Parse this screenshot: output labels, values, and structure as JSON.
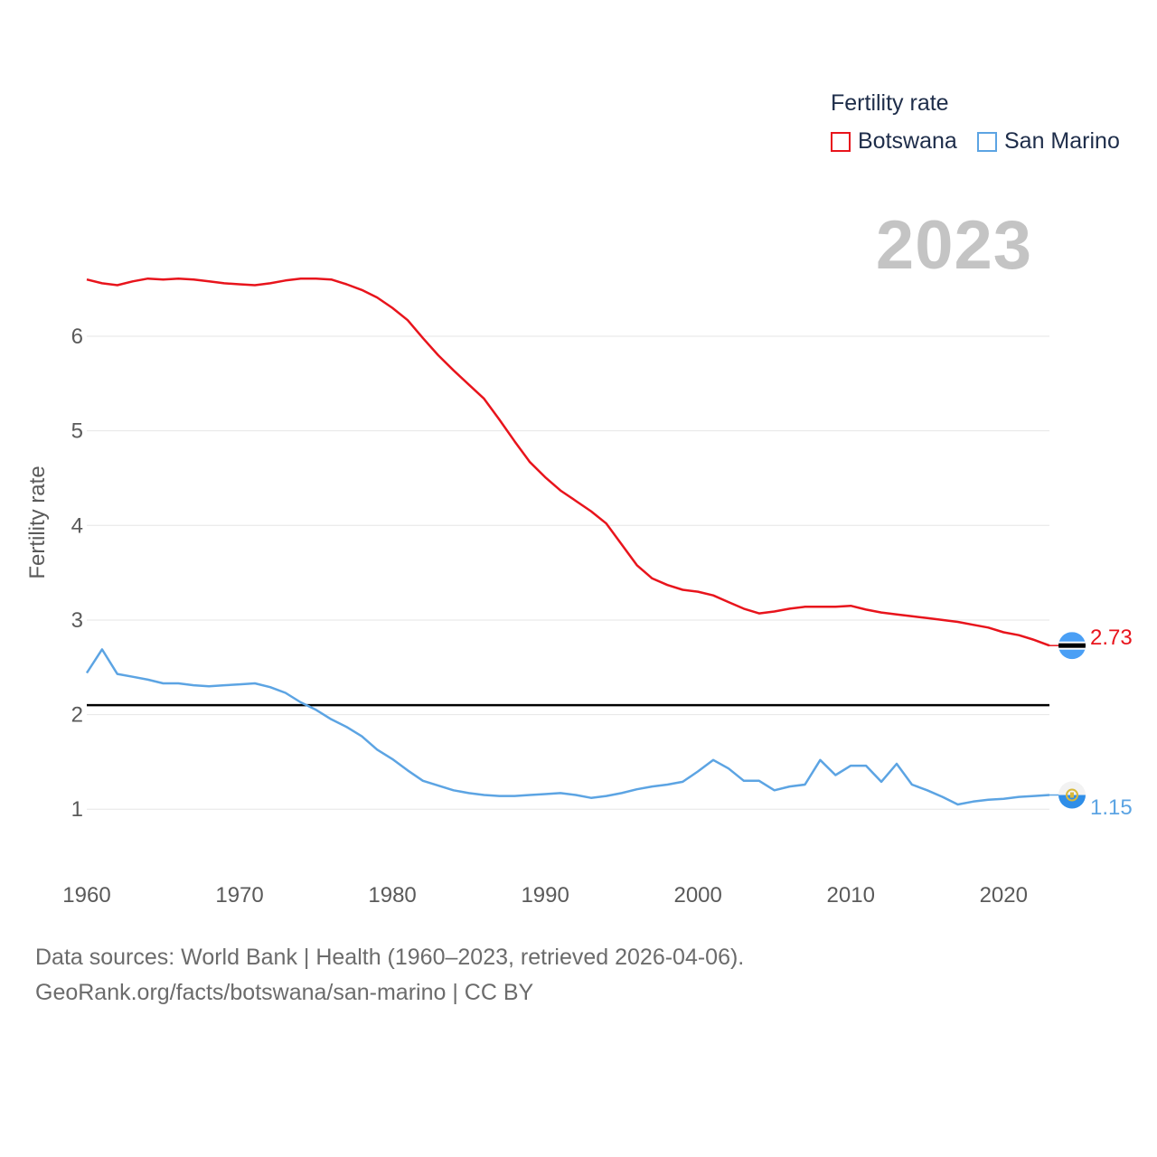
{
  "chart_data": {
    "type": "line",
    "title": "Fertility rate",
    "ylabel": "Fertility rate",
    "xlabel": "",
    "current_year": "2023",
    "xlim": [
      1960,
      2023
    ],
    "ylim": [
      0.4,
      7.3
    ],
    "x_ticks": [
      1960,
      1970,
      1980,
      1990,
      2000,
      2010,
      2020
    ],
    "y_ticks": [
      1,
      2,
      3,
      4,
      5,
      6
    ],
    "grid": true,
    "reference_line": 2.1,
    "series": [
      {
        "name": "Botswana",
        "color": "#e8141c",
        "end_label": "2.73",
        "flag_icon": "botswana-flag-icon",
        "x": [
          1960,
          1961,
          1962,
          1963,
          1964,
          1965,
          1966,
          1967,
          1968,
          1969,
          1970,
          1971,
          1972,
          1973,
          1974,
          1975,
          1976,
          1977,
          1978,
          1979,
          1980,
          1981,
          1982,
          1983,
          1984,
          1985,
          1986,
          1987,
          1988,
          1989,
          1990,
          1991,
          1992,
          1993,
          1994,
          1995,
          1996,
          1997,
          1998,
          1999,
          2000,
          2001,
          2002,
          2003,
          2004,
          2005,
          2006,
          2007,
          2008,
          2009,
          2010,
          2011,
          2012,
          2013,
          2014,
          2015,
          2016,
          2017,
          2018,
          2019,
          2020,
          2021,
          2022,
          2023
        ],
        "values": [
          6.6,
          6.56,
          6.54,
          6.58,
          6.61,
          6.6,
          6.61,
          6.6,
          6.58,
          6.56,
          6.55,
          6.54,
          6.56,
          6.59,
          6.61,
          6.61,
          6.6,
          6.55,
          6.49,
          6.41,
          6.3,
          6.17,
          5.98,
          5.8,
          5.64,
          5.49,
          5.34,
          5.12,
          4.89,
          4.67,
          4.51,
          4.37,
          4.26,
          4.15,
          4.02,
          3.8,
          3.58,
          3.44,
          3.37,
          3.32,
          3.3,
          3.26,
          3.19,
          3.12,
          3.07,
          3.09,
          3.12,
          3.14,
          3.14,
          3.14,
          3.15,
          3.11,
          3.08,
          3.06,
          3.04,
          3.02,
          3.0,
          2.98,
          2.95,
          2.92,
          2.87,
          2.84,
          2.79,
          2.73
        ]
      },
      {
        "name": "San Marino",
        "color": "#5ca4e3",
        "end_label": "1.15",
        "flag_icon": "san-marino-flag-icon",
        "x": [
          1960,
          1961,
          1962,
          1963,
          1964,
          1965,
          1966,
          1967,
          1968,
          1969,
          1970,
          1971,
          1972,
          1973,
          1974,
          1975,
          1976,
          1977,
          1978,
          1979,
          1980,
          1981,
          1982,
          1983,
          1984,
          1985,
          1986,
          1987,
          1988,
          1989,
          1990,
          1991,
          1992,
          1993,
          1994,
          1995,
          1996,
          1997,
          1998,
          1999,
          2000,
          2001,
          2002,
          2003,
          2004,
          2005,
          2006,
          2007,
          2008,
          2009,
          2010,
          2011,
          2012,
          2013,
          2014,
          2015,
          2016,
          2017,
          2018,
          2019,
          2020,
          2021,
          2022,
          2023
        ],
        "values": [
          2.44,
          2.69,
          2.43,
          2.4,
          2.37,
          2.33,
          2.33,
          2.31,
          2.3,
          2.31,
          2.32,
          2.33,
          2.29,
          2.23,
          2.13,
          2.05,
          1.95,
          1.87,
          1.77,
          1.63,
          1.53,
          1.41,
          1.3,
          1.25,
          1.2,
          1.17,
          1.15,
          1.14,
          1.14,
          1.15,
          1.16,
          1.17,
          1.15,
          1.12,
          1.14,
          1.17,
          1.21,
          1.24,
          1.26,
          1.29,
          1.4,
          1.52,
          1.43,
          1.3,
          1.3,
          1.2,
          1.24,
          1.26,
          1.52,
          1.36,
          1.46,
          1.46,
          1.29,
          1.48,
          1.26,
          1.2,
          1.13,
          1.05,
          1.08,
          1.1,
          1.11,
          1.13,
          1.14,
          1.15
        ]
      }
    ]
  },
  "legend": {
    "title": "Fertility rate",
    "items": [
      "Botswana",
      "San Marino"
    ]
  },
  "footer": {
    "line1": "Data sources: World Bank | Health (1960–2023, retrieved 2026-04-06).",
    "line2": "GeoRank.org/facts/botswana/san-marino | CC BY"
  }
}
